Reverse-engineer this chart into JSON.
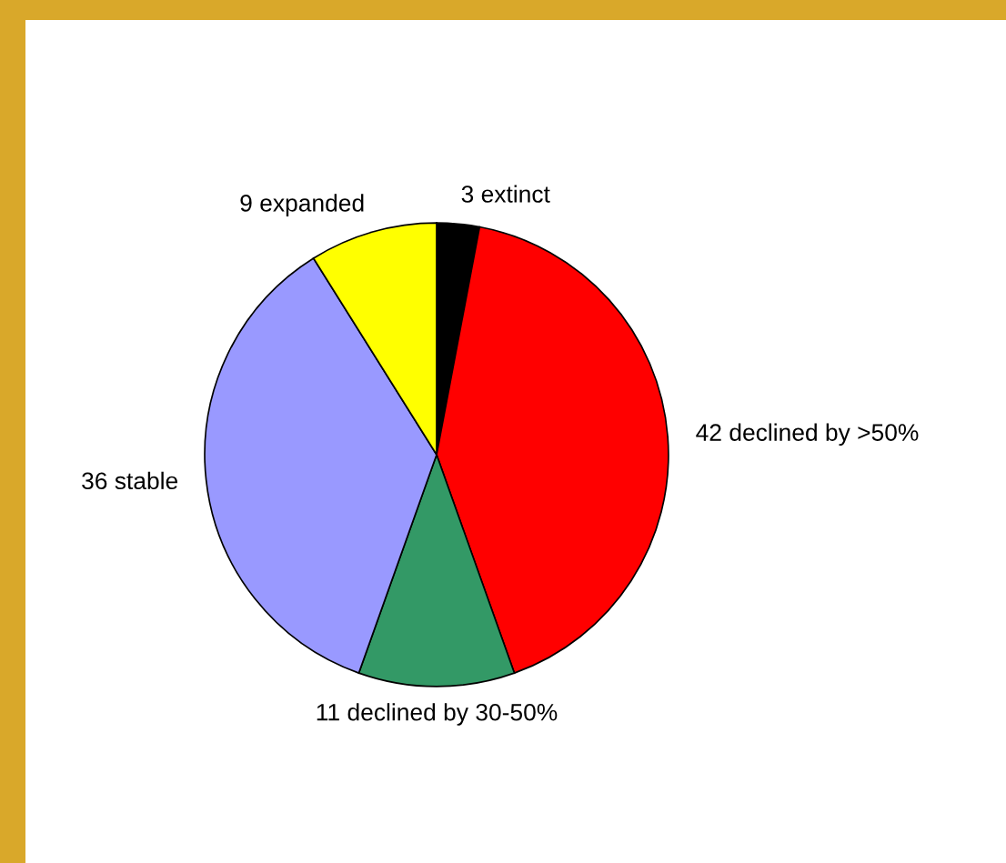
{
  "chart_data": {
    "type": "pie",
    "categories": [
      "3 extinct",
      "42 declined by >50%",
      "11 declined by 30-50%",
      "36 stable",
      "9 expanded"
    ],
    "values": [
      3,
      42,
      11,
      36,
      9
    ],
    "colors": [
      "#000000",
      "#ff0000",
      "#339966",
      "#9999ff",
      "#ffff00"
    ],
    "legend": false
  }
}
